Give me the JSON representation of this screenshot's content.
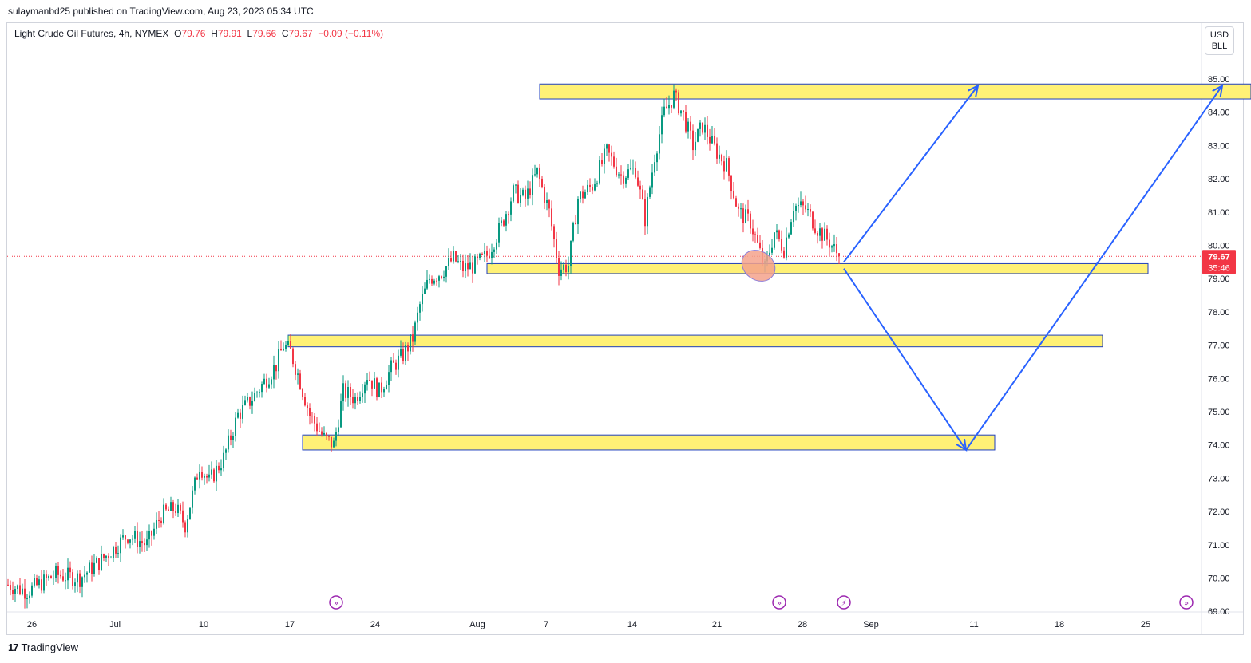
{
  "header": {
    "published": "sulaymanbd25 published on TradingView.com, Aug 23, 2023 05:34 UTC"
  },
  "legend": {
    "symbol": "Light Crude Oil Futures, 4h, NYMEX",
    "o_label": "O",
    "o": "79.76",
    "h_label": "H",
    "h": "79.91",
    "l_label": "L",
    "l": "79.66",
    "c_label": "C",
    "c": "79.67",
    "change": "−0.09 (−0.11%)"
  },
  "currency": {
    "line1": "USD",
    "line2": "BLL"
  },
  "price_tag": {
    "price": "79.67",
    "countdown": "35:46"
  },
  "footer": {
    "brand": "TradingView"
  },
  "colors": {
    "up": "#089981",
    "down": "#f23645",
    "zone_fill": "#fff176",
    "zone_border": "#1f3fbf",
    "arrow": "#2962ff",
    "ellipse": "#f4a28c",
    "event_icon": "#9c27b0"
  },
  "chart_data": {
    "type": "candlestick",
    "title": "Light Crude Oil Futures, 4h, NYMEX",
    "last_price": 79.67,
    "y_ticks": [
      "85.00",
      "84.00",
      "83.00",
      "82.00",
      "81.00",
      "80.00",
      "79.00",
      "78.00",
      "77.00",
      "76.00",
      "75.00",
      "74.00",
      "73.00",
      "72.00",
      "71.00",
      "70.00",
      "69.00"
    ],
    "x_ticks": [
      "26",
      "Jul",
      "10",
      "17",
      "24",
      "Aug",
      "7",
      "14",
      "21",
      "28",
      "Sep",
      "11",
      "18",
      "25"
    ],
    "ylim": [
      69,
      85
    ],
    "close_path": [
      [
        0,
        69.8
      ],
      [
        8,
        69.6
      ],
      [
        20,
        70.1
      ],
      [
        30,
        70.0
      ],
      [
        40,
        70.6
      ],
      [
        50,
        71.3
      ],
      [
        58,
        71.0
      ],
      [
        64,
        71.9
      ],
      [
        70,
        72.1
      ],
      [
        74,
        71.6
      ],
      [
        80,
        73.4
      ],
      [
        84,
        72.9
      ],
      [
        90,
        73.6
      ],
      [
        96,
        74.9
      ],
      [
        102,
        75.4
      ],
      [
        108,
        76.0
      ],
      [
        112,
        76.4
      ],
      [
        115,
        77.0
      ],
      [
        118,
        76.8
      ],
      [
        122,
        75.9
      ],
      [
        126,
        74.9
      ],
      [
        132,
        74.2
      ],
      [
        136,
        74.0
      ],
      [
        140,
        75.6
      ],
      [
        145,
        75.4
      ],
      [
        150,
        76.1
      ],
      [
        155,
        75.6
      ],
      [
        160,
        76.3
      ],
      [
        165,
        76.7
      ],
      [
        169,
        77.2
      ],
      [
        172,
        78.2
      ],
      [
        176,
        79.0
      ],
      [
        181,
        79.2
      ],
      [
        186,
        79.6
      ],
      [
        190,
        79.3
      ],
      [
        195,
        79.4
      ],
      [
        200,
        79.7
      ],
      [
        206,
        80.6
      ],
      [
        211,
        81.6
      ],
      [
        216,
        81.4
      ],
      [
        221,
        82.2
      ],
      [
        226,
        81.0
      ],
      [
        230,
        79.3
      ],
      [
        234,
        79.4
      ],
      [
        238,
        81.4
      ],
      [
        244,
        81.8
      ],
      [
        250,
        82.8
      ],
      [
        256,
        82.1
      ],
      [
        262,
        82.3
      ],
      [
        266,
        80.8
      ],
      [
        270,
        82.7
      ],
      [
        274,
        84.0
      ],
      [
        278,
        84.5
      ],
      [
        282,
        83.9
      ],
      [
        286,
        83.0
      ],
      [
        290,
        83.6
      ],
      [
        296,
        82.8
      ],
      [
        300,
        82.4
      ],
      [
        305,
        81.0
      ],
      [
        310,
        80.7
      ],
      [
        316,
        79.3
      ],
      [
        320,
        80.4
      ],
      [
        324,
        79.9
      ],
      [
        328,
        81.2
      ],
      [
        333,
        81.1
      ],
      [
        338,
        80.5
      ],
      [
        343,
        80.1
      ],
      [
        347,
        79.67
      ]
    ],
    "zones": [
      {
        "x0": 222,
        "x1": 519,
        "y_top": 84.85,
        "y_bottom": 84.4
      },
      {
        "x0": 200,
        "x1": 476,
        "y_top": 79.45,
        "y_bottom": 79.15
      },
      {
        "x0": 117,
        "x1": 457,
        "y_top": 77.3,
        "y_bottom": 76.95
      },
      {
        "x0": 123,
        "x1": 412,
        "y_top": 74.3,
        "y_bottom": 73.85
      }
    ],
    "arrows": [
      {
        "from": [
          349,
          79.5
        ],
        "to": [
          405,
          84.8
        ]
      },
      {
        "from": [
          349,
          79.3
        ],
        "to": [
          400,
          73.85
        ]
      },
      {
        "from": [
          400,
          73.85
        ],
        "to": [
          507,
          84.8
        ]
      }
    ],
    "events": [
      137,
      322,
      349,
      492
    ]
  }
}
